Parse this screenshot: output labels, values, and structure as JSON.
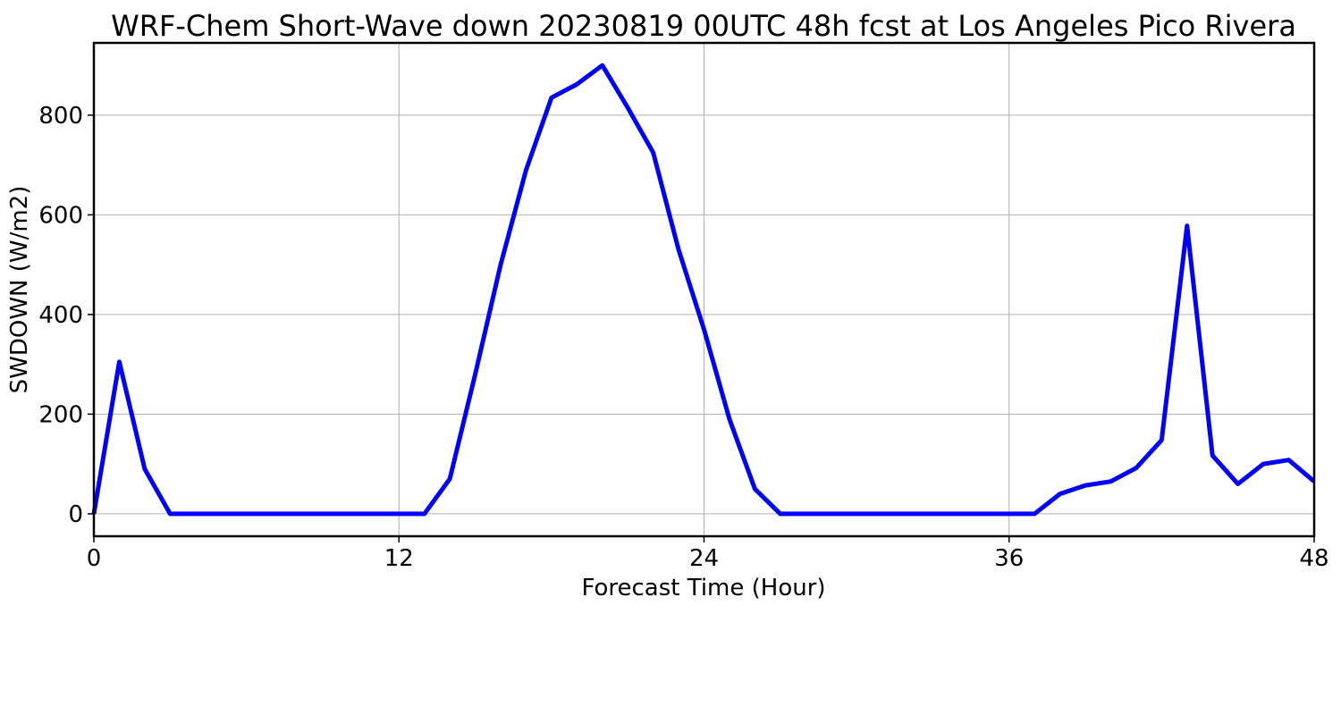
{
  "chart_data": {
    "type": "line",
    "title": "WRF-Chem Short-Wave down  20230819 00UTC 48h fcst at Los Angeles Pico Rivera",
    "xlabel": "Forecast Time (Hour)",
    "ylabel": "SWDOWN  (W/m2)",
    "xlim": [
      0,
      48
    ],
    "ylim": [
      -45,
      945
    ],
    "xticks": [
      0,
      12,
      24,
      36,
      48
    ],
    "yticks": [
      0,
      200,
      400,
      600,
      800
    ],
    "grid": true,
    "series": [
      {
        "color": "#0000ff",
        "x": [
          0,
          1,
          2,
          3,
          4,
          5,
          6,
          7,
          8,
          9,
          10,
          11,
          12,
          13,
          14,
          15,
          16,
          17,
          18,
          19,
          20,
          21,
          22,
          23,
          24,
          25,
          26,
          27,
          28,
          29,
          30,
          31,
          32,
          33,
          34,
          35,
          36,
          37,
          38,
          39,
          40,
          41,
          42,
          43,
          44,
          45,
          46,
          47,
          48
        ],
        "values": [
          0,
          305,
          90,
          0,
          0,
          0,
          0,
          0,
          0,
          0,
          0,
          0,
          0,
          0,
          70,
          280,
          500,
          690,
          835,
          862,
          900,
          815,
          725,
          530,
          370,
          190,
          50,
          0,
          0,
          0,
          0,
          0,
          0,
          0,
          0,
          0,
          0,
          0,
          40,
          57,
          65,
          92,
          148,
          578,
          117,
          60,
          100,
          108,
          65
        ]
      }
    ]
  }
}
